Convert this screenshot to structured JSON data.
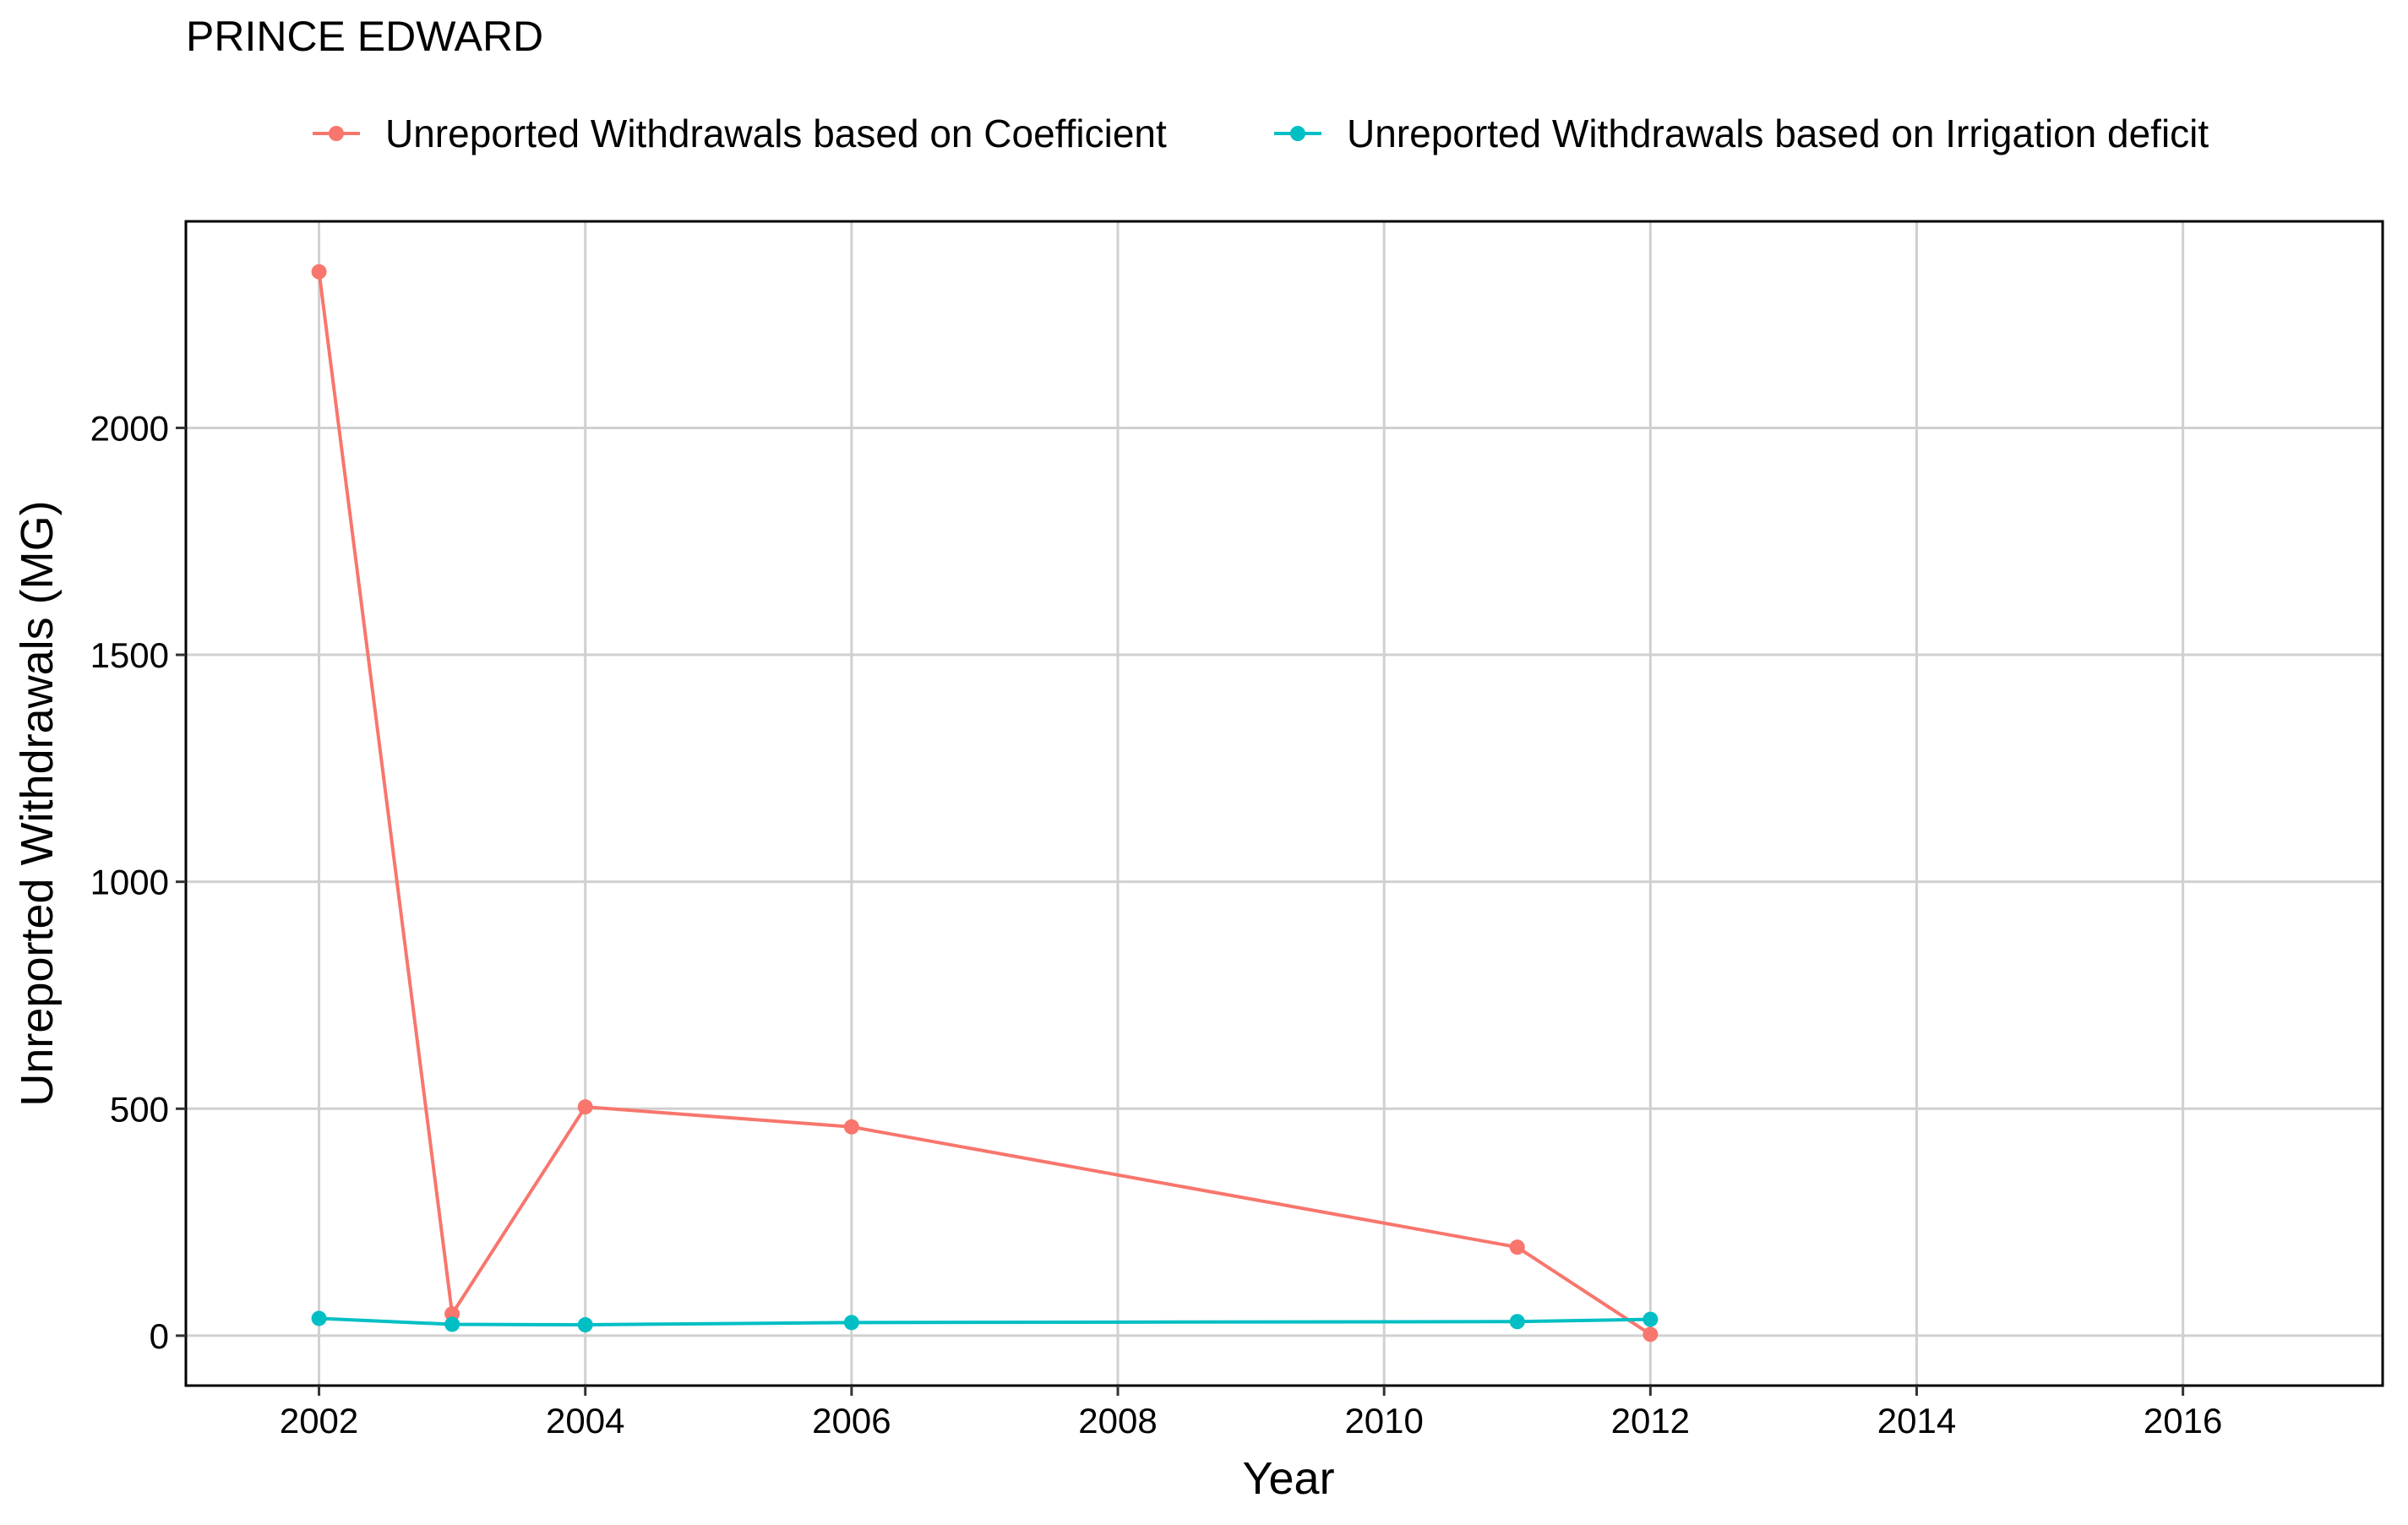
{
  "chart_data": {
    "type": "line",
    "title": "PRINCE EDWARD",
    "xlabel": "Year",
    "ylabel": "Unreported Withdrawals (MG)",
    "xlim": [
      2001.0,
      2017.5
    ],
    "ylim": [
      -110,
      2455
    ],
    "x_ticks": [
      2002,
      2004,
      2006,
      2008,
      2010,
      2012,
      2014,
      2016
    ],
    "y_ticks": [
      0,
      500,
      1000,
      1500,
      2000
    ],
    "grid": true,
    "legend_position": "top",
    "series": [
      {
        "name": "Unreported Withdrawals based on Coefficient",
        "color": "#F8766D",
        "x": [
          2002,
          2003,
          2004,
          2006,
          2011,
          2012
        ],
        "y": [
          2344,
          48,
          504,
          460,
          195,
          3
        ]
      },
      {
        "name": "Unreported Withdrawals based on Irrigation deficit",
        "color": "#00BFC4",
        "x": [
          2002,
          2003,
          2004,
          2006,
          2011,
          2012
        ],
        "y": [
          38,
          25,
          24,
          29,
          31,
          36
        ]
      }
    ]
  }
}
